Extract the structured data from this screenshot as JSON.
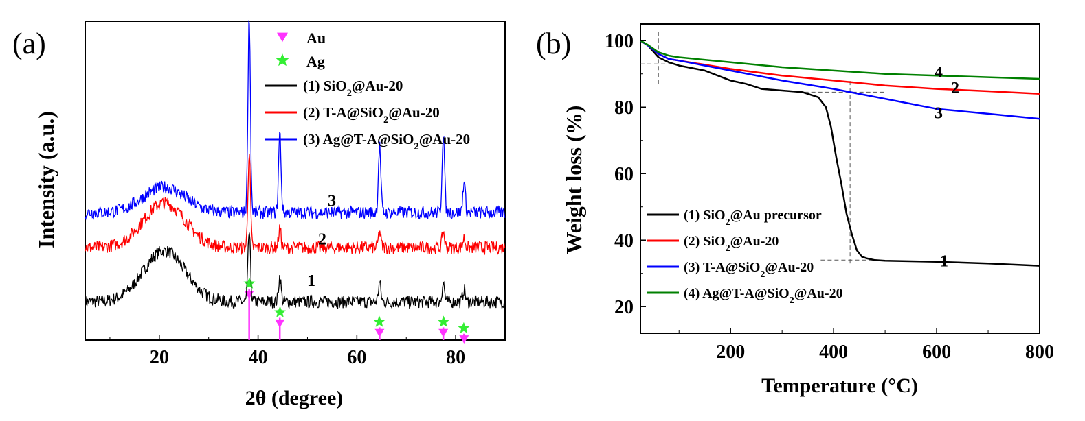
{
  "charts": [
    {
      "panel_label": "(a)",
      "chart_data": {
        "type": "line",
        "xlabel": "2θ (degree)",
        "ylabel": "Intensity (a.u.)",
        "xlim": [
          5,
          90
        ],
        "xticks": [
          20,
          40,
          60,
          80
        ],
        "yticks_shown": false,
        "legend_position": "top-right",
        "legend_markers": [
          {
            "name": "Au",
            "marker": "triangle-down",
            "color": "#ff33ff"
          },
          {
            "name": "Ag",
            "marker": "star",
            "color": "#33ee33"
          }
        ],
        "series": [
          {
            "name": "(1) SiO2@Au-20",
            "label": "1",
            "color": "#000000",
            "baseline": 0.12,
            "hump": 0.16,
            "noise": 0.02,
            "peaks": [
              [
                38.2,
                0.22
              ],
              [
                44.4,
                0.08
              ],
              [
                64.6,
                0.06
              ],
              [
                77.5,
                0.06
              ],
              [
                81.7,
                0.04
              ]
            ]
          },
          {
            "name": "(2) T-A@SiO2@Au-20",
            "label": "2",
            "color": "#ff0000",
            "baseline": 0.29,
            "hump": 0.14,
            "noise": 0.02,
            "peaks": [
              [
                38.2,
                0.3
              ],
              [
                44.4,
                0.06
              ],
              [
                64.6,
                0.05
              ],
              [
                77.5,
                0.05
              ],
              [
                81.7,
                0.03
              ]
            ]
          },
          {
            "name": "(3) Ag@T-A@SiO2@Au-20",
            "label": "3",
            "color": "#0000ff",
            "baseline": 0.4,
            "hump": 0.08,
            "noise": 0.02,
            "peaks": [
              [
                38.2,
                0.62
              ],
              [
                44.4,
                0.25
              ],
              [
                64.6,
                0.21
              ],
              [
                77.5,
                0.25
              ],
              [
                81.7,
                0.1
              ]
            ]
          }
        ],
        "reference_lines": [
          {
            "phase": "Au",
            "x": [
              38.2,
              44.4,
              64.6,
              77.5,
              81.7
            ]
          },
          {
            "phase": "Ag",
            "x": [
              38.1,
              44.3,
              64.4,
              77.4,
              81.5
            ]
          }
        ]
      }
    },
    {
      "panel_label": "(b)",
      "chart_data": {
        "type": "line",
        "xlabel": "Temperature (°C)",
        "ylabel": "Weight  loss (%)",
        "xlim": [
          25,
          800
        ],
        "ylim": [
          12,
          105
        ],
        "xticks": [
          200,
          400,
          600,
          800
        ],
        "yticks": [
          20,
          40,
          60,
          80,
          100
        ],
        "legend_position": "bottom-left",
        "series": [
          {
            "name": "(1) SiO2@Au precursor",
            "label": "1",
            "color": "#000000",
            "x": [
              25,
              40,
              60,
              80,
              100,
              150,
              200,
              230,
              250,
              260,
              300,
              340,
              370,
              385,
              395,
              405,
              415,
              425,
              435,
              445,
              455,
              465,
              480,
              500,
              600,
              700,
              800
            ],
            "y": [
              100,
              98.5,
              95,
              93.5,
              92.5,
              91,
              88,
              87,
              86,
              85.5,
              85,
              84.5,
              83,
              80,
              74,
              65,
              57,
              48,
              42,
              37,
              35,
              34.5,
              34,
              33.8,
              33.5,
              33,
              32.3
            ]
          },
          {
            "name": "(2) SiO2@Au-20",
            "label": "2",
            "color": "#ff0000",
            "x": [
              25,
              40,
              60,
              80,
              100,
              200,
              300,
              400,
              500,
              600,
              700,
              800
            ],
            "y": [
              100,
              98.5,
              96,
              94.5,
              94,
              91.5,
              89.5,
              88,
              86.5,
              85.5,
              84.8,
              84
            ]
          },
          {
            "name": "(3) T-A@SiO2@Au-20",
            "label": "3",
            "color": "#0000ff",
            "x": [
              25,
              40,
              60,
              80,
              100,
              200,
              300,
              400,
              500,
              600,
              700,
              800
            ],
            "y": [
              100,
              98.5,
              96,
              94.5,
              94,
              91,
              88,
              85.5,
              82.5,
              79.5,
              78,
              76.5
            ]
          },
          {
            "name": "(4) Ag@T-A@SiO2@Au-20",
            "label": "4",
            "color": "#008000",
            "x": [
              25,
              40,
              60,
              80,
              100,
              200,
              300,
              400,
              500,
              600,
              700,
              800
            ],
            "y": [
              100,
              98.7,
              96.5,
              95.5,
              95,
              93.5,
              92,
              91,
              90,
              89.5,
              89,
              88.5
            ]
          }
        ],
        "guide_lines": [
          {
            "orientation": "vertical",
            "x": 60,
            "y_range": [
              87,
              103
            ]
          },
          {
            "orientation": "horizontal",
            "y": 93,
            "x_range": [
              25,
              85
            ]
          },
          {
            "orientation": "vertical",
            "x": 432,
            "y_range": [
              33,
              88
            ]
          },
          {
            "orientation": "horizontal",
            "y": 84.5,
            "x_range": [
              330,
              500
            ]
          },
          {
            "orientation": "horizontal",
            "y": 34,
            "x_range": [
              375,
              480
            ]
          }
        ]
      }
    }
  ]
}
